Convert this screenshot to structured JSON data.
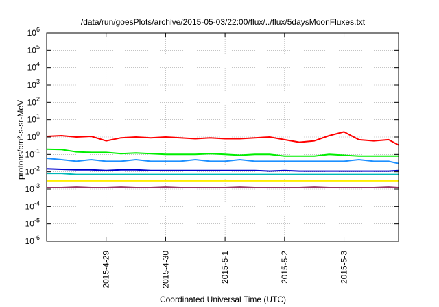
{
  "chart_data": {
    "type": "line",
    "title": "/data/run/goesPlots/archive/2015-05-03/22:00/flux/../flux/5daysMoonFluxes.txt",
    "xlabel": "Coordinated Universal Time (UTC)",
    "ylabel": "protons/cm²-s-sr-MeV",
    "y_scale": "log",
    "ylim": [
      1e-06,
      1000000
    ],
    "y_ticks": [
      {
        "value": 1e-06,
        "exp": "-6"
      },
      {
        "value": 1e-05,
        "exp": "-5"
      },
      {
        "value": 0.0001,
        "exp": "-4"
      },
      {
        "value": 0.001,
        "exp": "-3"
      },
      {
        "value": 0.01,
        "exp": "-2"
      },
      {
        "value": 0.1,
        "exp": "-1"
      },
      {
        "value": 1,
        "exp": "0"
      },
      {
        "value": 10,
        "exp": "1"
      },
      {
        "value": 100,
        "exp": "2"
      },
      {
        "value": 1000,
        "exp": "3"
      },
      {
        "value": 10000,
        "exp": "4"
      },
      {
        "value": 100000,
        "exp": "5"
      },
      {
        "value": 1000000,
        "exp": "6"
      }
    ],
    "y_tick_base": "10",
    "xlim": [
      "2015-04-28 00:00",
      "2015-05-03 22:00"
    ],
    "x_ticks": [
      "2015-4-29",
      "2015-4-30",
      "2015-5-1",
      "2015-5-2",
      "2015-5-3"
    ],
    "x_tick_dates": [
      "2015-04-29",
      "2015-04-30",
      "2015-05-01",
      "2015-05-02",
      "2015-05-03"
    ],
    "grid": true,
    "legend": "none",
    "x": [
      "2015-04-28 00:00",
      "2015-04-28 06:00",
      "2015-04-28 12:00",
      "2015-04-28 18:00",
      "2015-04-29 00:00",
      "2015-04-29 06:00",
      "2015-04-29 12:00",
      "2015-04-29 18:00",
      "2015-04-30 00:00",
      "2015-04-30 06:00",
      "2015-04-30 12:00",
      "2015-04-30 18:00",
      "2015-05-01 00:00",
      "2015-05-01 06:00",
      "2015-05-01 12:00",
      "2015-05-01 18:00",
      "2015-05-02 00:00",
      "2015-05-02 06:00",
      "2015-05-02 12:00",
      "2015-05-02 18:00",
      "2015-05-03 00:00",
      "2015-05-03 06:00",
      "2015-05-03 12:00",
      "2015-05-03 18:00",
      "2015-05-03 22:00"
    ],
    "series": [
      {
        "color": "#ff0000",
        "values": [
          1.1,
          1.2,
          1.0,
          1.1,
          0.6,
          0.9,
          1.0,
          0.9,
          1.0,
          0.9,
          0.8,
          0.9,
          0.8,
          0.8,
          0.9,
          1.0,
          0.7,
          0.5,
          0.6,
          1.2,
          2.0,
          0.7,
          0.6,
          0.7,
          0.35
        ]
      },
      {
        "color": "#00ee00",
        "values": [
          0.2,
          0.19,
          0.14,
          0.13,
          0.13,
          0.11,
          0.12,
          0.11,
          0.1,
          0.1,
          0.1,
          0.11,
          0.1,
          0.09,
          0.1,
          0.1,
          0.08,
          0.08,
          0.08,
          0.1,
          0.09,
          0.08,
          0.08,
          0.08,
          0.08
        ]
      },
      {
        "color": "#1e90ff",
        "values": [
          0.06,
          0.05,
          0.04,
          0.05,
          0.04,
          0.04,
          0.05,
          0.04,
          0.04,
          0.04,
          0.05,
          0.04,
          0.04,
          0.05,
          0.04,
          0.04,
          0.04,
          0.04,
          0.04,
          0.04,
          0.04,
          0.05,
          0.04,
          0.04,
          0.03
        ]
      },
      {
        "color": "#0000cd",
        "values": [
          0.015,
          0.014,
          0.013,
          0.013,
          0.012,
          0.013,
          0.013,
          0.012,
          0.012,
          0.012,
          0.012,
          0.012,
          0.012,
          0.012,
          0.012,
          0.011,
          0.012,
          0.011,
          0.011,
          0.011,
          0.011,
          0.011,
          0.011,
          0.011,
          0.012
        ]
      },
      {
        "color": "#00b8b8",
        "values": [
          0.008,
          0.008,
          0.007,
          0.007,
          0.007,
          0.007,
          0.007,
          0.007,
          0.007,
          0.007,
          0.007,
          0.007,
          0.007,
          0.007,
          0.007,
          0.007,
          0.007,
          0.007,
          0.007,
          0.007,
          0.007,
          0.007,
          0.007,
          0.007,
          0.007
        ]
      },
      {
        "color": "#ffee00",
        "values": [
          0.003,
          0.003,
          0.003,
          0.003,
          0.003,
          0.003,
          0.003,
          0.003,
          0.003,
          0.003,
          0.003,
          0.003,
          0.003,
          0.003,
          0.003,
          0.003,
          0.003,
          0.003,
          0.003,
          0.003,
          0.003,
          0.003,
          0.003,
          0.003,
          0.003
        ]
      },
      {
        "color": "#993366",
        "values": [
          0.0012,
          0.0012,
          0.0013,
          0.0012,
          0.0012,
          0.0013,
          0.0012,
          0.0012,
          0.0013,
          0.0012,
          0.0012,
          0.0012,
          0.0012,
          0.0013,
          0.0012,
          0.0012,
          0.0012,
          0.0012,
          0.0013,
          0.0012,
          0.0012,
          0.0012,
          0.0012,
          0.0013,
          0.0012
        ]
      }
    ]
  }
}
